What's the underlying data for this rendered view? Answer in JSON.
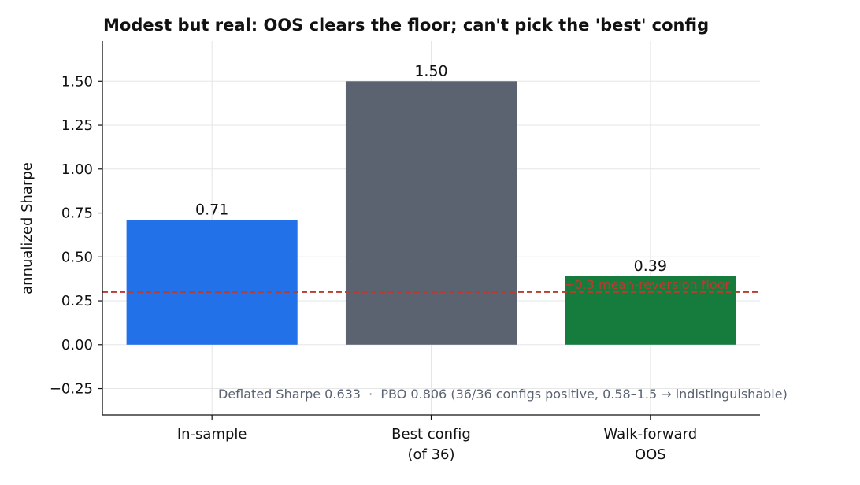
{
  "chart_data": {
    "type": "bar",
    "title": "Modest but real: OOS clears the floor; can't pick the 'best' config",
    "ylabel": "annualized Sharpe",
    "xlabel": "",
    "categories": [
      [
        "In-sample"
      ],
      [
        "Best config",
        "(of 36)"
      ],
      [
        "Walk-forward",
        "OOS"
      ]
    ],
    "values": [
      0.71,
      1.5,
      0.39
    ],
    "value_labels": [
      "0.71",
      "1.50",
      "0.39"
    ],
    "colors": [
      "#2271e8",
      "#5c6370",
      "#157c3e"
    ],
    "ylim": [
      -0.4,
      1.73
    ],
    "yticks": [
      -0.25,
      0.0,
      0.25,
      0.5,
      0.75,
      1.0,
      1.25,
      1.5
    ],
    "ytick_labels": [
      "−0.25",
      "0.00",
      "0.25",
      "0.50",
      "0.75",
      "1.00",
      "1.25",
      "1.50"
    ],
    "grid": true,
    "reference_line": {
      "value": 0.3,
      "label": "+0.3 mean-reversion floor",
      "color": "#c0392b",
      "style": "dashed"
    },
    "annotation": "Deflated Sharpe 0.633  ·  PBO 0.806 (36/36 configs positive, 0.58–1.5 → indistinguishable)"
  }
}
